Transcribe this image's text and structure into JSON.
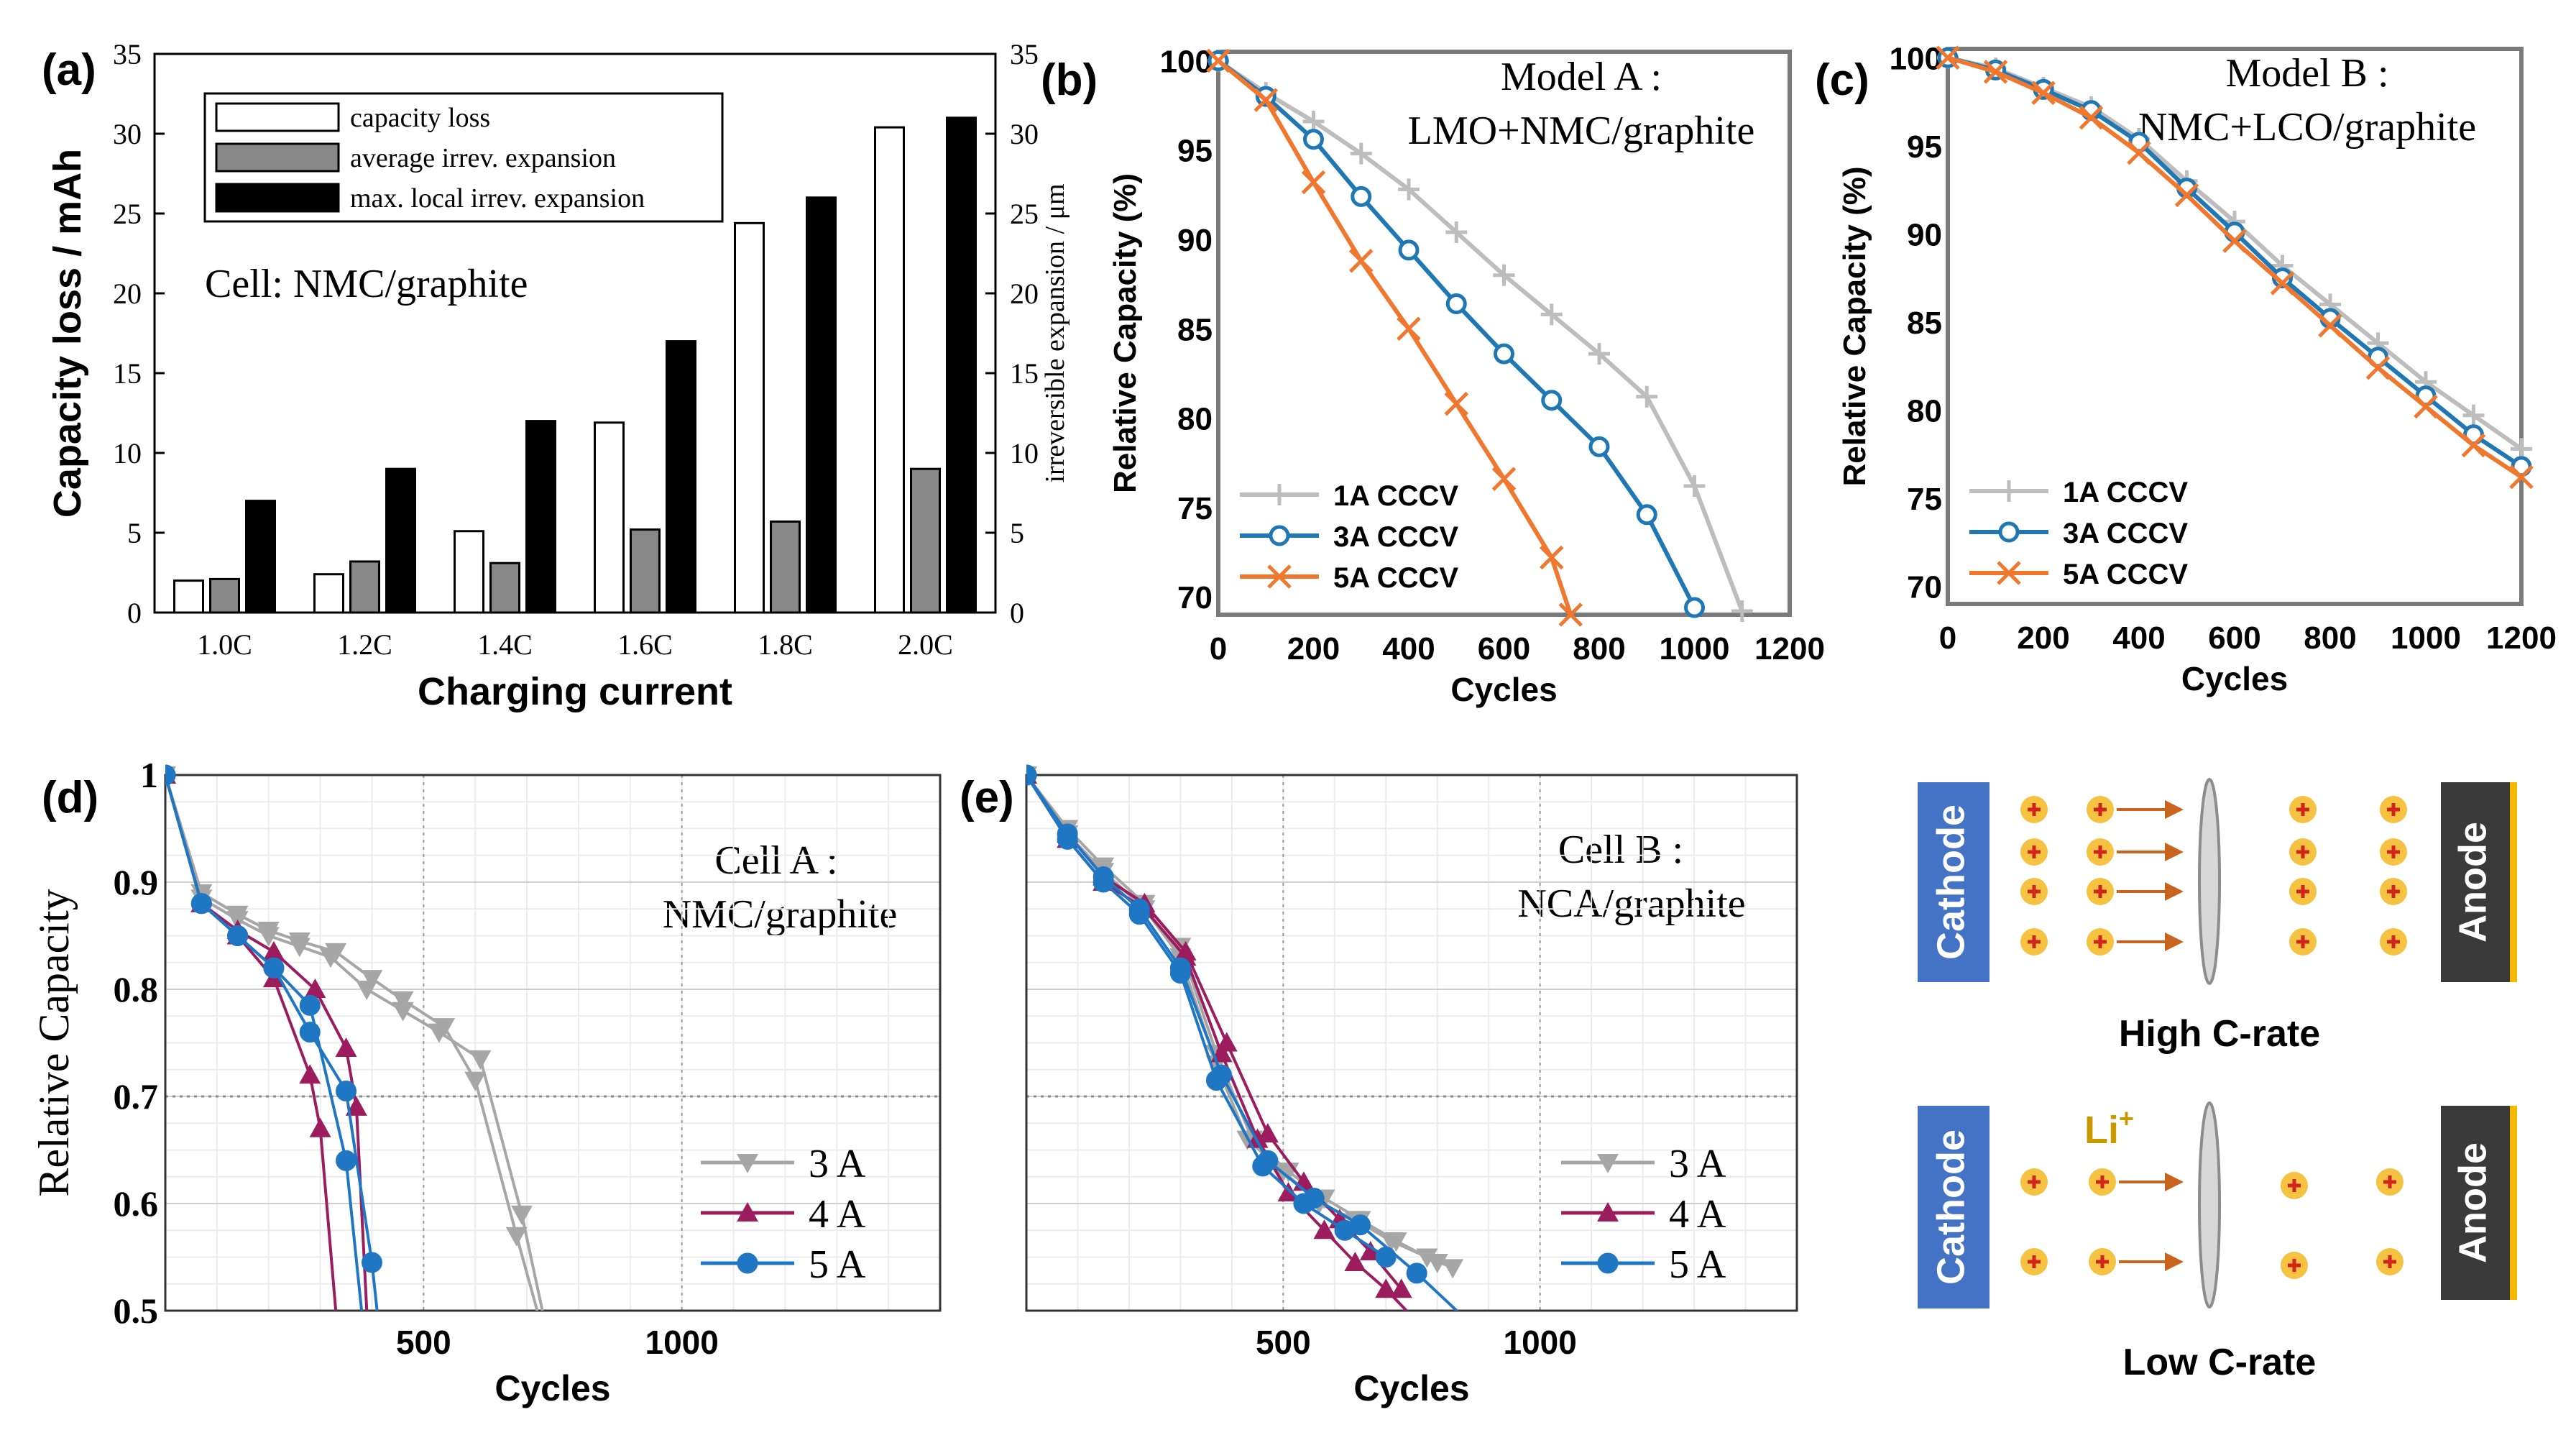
{
  "panels": {
    "a": {
      "label": "(a)",
      "cell_text": "Cell: NMC/graphite"
    },
    "b": {
      "label": "(b)",
      "model_line1": "Model A :",
      "model_line2": "LMO+NMC/graphite"
    },
    "c": {
      "label": "(c)",
      "model_line1": "Model B :",
      "model_line2": "NMC+LCO/graphite"
    },
    "d": {
      "label": "(d)",
      "cell_line1": "Cell A :",
      "cell_line2": "NMC/graphite"
    },
    "e": {
      "label": "(e)",
      "cell_line1": "Cell B :",
      "cell_line2": "NCA/graphite"
    }
  },
  "chart_data": [
    {
      "id": "a",
      "type": "bar",
      "xlabel": "Charging current",
      "ylabel": "Capacity loss / mAh",
      "y2label": "irreversible expansion / μm",
      "ylim": [
        0,
        35
      ],
      "yticks": [
        0,
        5,
        10,
        15,
        20,
        25,
        30,
        35
      ],
      "categories": [
        "1.0C",
        "1.2C",
        "1.4C",
        "1.6C",
        "1.8C",
        "2.0C"
      ],
      "series": [
        {
          "name": "capacity loss",
          "color": "#ffffff",
          "values": [
            2.0,
            2.4,
            5.1,
            11.9,
            24.4,
            30.4
          ]
        },
        {
          "name": "average irrev. expansion",
          "color": "#888888",
          "values": [
            2.1,
            3.2,
            3.1,
            5.2,
            5.7,
            9.0
          ]
        },
        {
          "name": "max. local irrev. expansion",
          "color": "#000000",
          "values": [
            7.0,
            9.0,
            12.0,
            17.0,
            26.0,
            31.0
          ]
        }
      ],
      "legend": "top-left",
      "grid": false
    },
    {
      "id": "b",
      "type": "line",
      "xlabel": "Cycles",
      "ylabel": "Relative Capacity (%)",
      "xlim": [
        0,
        1200
      ],
      "ylim": [
        69,
        100.5
      ],
      "xticks": [
        0,
        200,
        400,
        600,
        800,
        1000,
        1200
      ],
      "yticks": [
        70,
        75,
        80,
        85,
        90,
        95,
        100
      ],
      "series": [
        {
          "name": "1A CCCV",
          "color": "#bdbdbd",
          "marker": "plus",
          "x": [
            0,
            100,
            200,
            300,
            400,
            500,
            600,
            700,
            800,
            900,
            1000,
            1100
          ],
          "y": [
            100,
            98.2,
            96.6,
            94.8,
            92.8,
            90.4,
            88.0,
            85.8,
            83.6,
            81.2,
            76.2,
            69.2
          ]
        },
        {
          "name": "3A CCCV",
          "color": "#1f77b4",
          "marker": "circle",
          "x": [
            0,
            100,
            200,
            300,
            400,
            500,
            600,
            700,
            800,
            900,
            1000
          ],
          "y": [
            100,
            98.0,
            95.6,
            92.4,
            89.4,
            86.4,
            83.6,
            81.0,
            78.4,
            74.6,
            69.4
          ]
        },
        {
          "name": "5A CCCV",
          "color": "#f0772e",
          "marker": "x",
          "x": [
            0,
            100,
            200,
            300,
            400,
            500,
            600,
            700,
            740
          ],
          "y": [
            100,
            97.8,
            93.2,
            88.8,
            85.0,
            80.8,
            76.6,
            72.2,
            69.0
          ]
        }
      ],
      "legend": "bottom-left",
      "grid": false
    },
    {
      "id": "c",
      "type": "line",
      "xlabel": "Cycles",
      "ylabel": "Relative Capacity (%)",
      "xlim": [
        0,
        1200
      ],
      "ylim": [
        69,
        100.5
      ],
      "xticks": [
        0,
        200,
        400,
        600,
        800,
        1000,
        1200
      ],
      "yticks": [
        70,
        75,
        80,
        85,
        90,
        95,
        100
      ],
      "series": [
        {
          "name": "1A CCCV",
          "color": "#bdbdbd",
          "marker": "plus",
          "x": [
            0,
            100,
            200,
            300,
            400,
            500,
            600,
            700,
            800,
            900,
            1000,
            1100,
            1200
          ],
          "y": [
            100,
            99.4,
            98.3,
            97.2,
            95.4,
            93.0,
            90.7,
            88.2,
            86.0,
            83.8,
            81.6,
            79.7,
            77.8
          ]
        },
        {
          "name": "3A CCCV",
          "color": "#1f77b4",
          "marker": "circle",
          "x": [
            0,
            100,
            200,
            300,
            400,
            500,
            600,
            700,
            800,
            900,
            1000,
            1100,
            1200
          ],
          "y": [
            100,
            99.3,
            98.2,
            97.0,
            95.2,
            92.6,
            90.1,
            87.5,
            85.2,
            83.0,
            80.8,
            78.6,
            76.8
          ]
        },
        {
          "name": "5A CCCV",
          "color": "#f0772e",
          "marker": "x",
          "x": [
            0,
            100,
            200,
            300,
            400,
            500,
            600,
            700,
            800,
            900,
            1000,
            1100,
            1200
          ],
          "y": [
            100,
            99.2,
            98.0,
            96.6,
            94.6,
            92.2,
            89.6,
            87.2,
            84.8,
            82.4,
            80.2,
            78.0,
            76.2
          ]
        }
      ],
      "legend": "bottom-left",
      "grid": false
    },
    {
      "id": "d",
      "type": "line",
      "xlabel": "Cycles",
      "ylabel": "Relative Capacity",
      "xlim": [
        0,
        1500
      ],
      "ylim": [
        0.5,
        1.0
      ],
      "xticks": [
        500,
        1000
      ],
      "yticks": [
        0.5,
        0.6,
        0.7,
        0.8,
        0.9,
        1
      ],
      "reference_line": 0.7,
      "series": [
        {
          "name": "3 A",
          "color": "#a6a6a6",
          "marker": "triangle-down",
          "x": [
            0,
            70,
            140,
            200,
            260,
            320,
            390,
            460,
            530,
            610,
            690,
            730
          ],
          "y": [
            1.0,
            0.885,
            0.865,
            0.85,
            0.84,
            0.83,
            0.8,
            0.78,
            0.76,
            0.735,
            0.59,
            0.5
          ]
        },
        {
          "name": "3 A",
          "color": "#a6a6a6",
          "marker": "triangle-down",
          "x": [
            0,
            70,
            140,
            200,
            260,
            330,
            400,
            460,
            540,
            600,
            680,
            720
          ],
          "y": [
            1.0,
            0.89,
            0.87,
            0.855,
            0.845,
            0.835,
            0.81,
            0.79,
            0.765,
            0.715,
            0.57,
            0.5
          ]
        },
        {
          "name": "4 A",
          "color": "#9b1d5e",
          "marker": "triangle-up",
          "x": [
            0,
            70,
            140,
            210,
            280,
            300,
            330
          ],
          "y": [
            1.0,
            0.88,
            0.85,
            0.81,
            0.72,
            0.67,
            0.5
          ]
        },
        {
          "name": "4 A",
          "color": "#9b1d5e",
          "marker": "triangle-up",
          "x": [
            0,
            70,
            140,
            210,
            290,
            350,
            370,
            390
          ],
          "y": [
            1.0,
            0.88,
            0.855,
            0.835,
            0.8,
            0.745,
            0.69,
            0.5
          ]
        },
        {
          "name": "5 A",
          "color": "#1f77c4",
          "marker": "circle",
          "x": [
            0,
            70,
            140,
            210,
            280,
            350,
            400,
            410
          ],
          "y": [
            1.0,
            0.88,
            0.85,
            0.82,
            0.76,
            0.705,
            0.545,
            0.5
          ]
        },
        {
          "name": "5 A",
          "color": "#1f77c4",
          "marker": "circle",
          "x": [
            0,
            70,
            140,
            210,
            280,
            350,
            380
          ],
          "y": [
            1.0,
            0.88,
            0.85,
            0.82,
            0.785,
            0.64,
            0.5
          ]
        }
      ],
      "legend": "bottom-right",
      "grid": true
    },
    {
      "id": "e",
      "type": "line",
      "xlabel": "Cycles",
      "ylabel": "",
      "xlim": [
        0,
        1500
      ],
      "ylim": [
        0.5,
        1.0
      ],
      "xticks": [
        500,
        1000
      ],
      "yticks": [],
      "reference_line": 0.7,
      "series": [
        {
          "name": "3 A",
          "color": "#a6a6a6",
          "marker": "triangle-down",
          "x": [
            0,
            80,
            150,
            230,
            300,
            370,
            430,
            500,
            570,
            640,
            710,
            780,
            830
          ],
          "y": [
            1.0,
            0.945,
            0.91,
            0.875,
            0.83,
            0.73,
            0.66,
            0.63,
            0.6,
            0.585,
            0.565,
            0.55,
            0.54
          ]
        },
        {
          "name": "3 A",
          "color": "#a6a6a6",
          "marker": "triangle-down",
          "x": [
            0,
            80,
            150,
            230,
            300,
            370,
            440,
            510,
            580,
            650,
            720,
            800
          ],
          "y": [
            1.0,
            0.95,
            0.915,
            0.88,
            0.84,
            0.74,
            0.66,
            0.63,
            0.605,
            0.585,
            0.565,
            0.545
          ]
        },
        {
          "name": "4 A",
          "color": "#9b1d5e",
          "marker": "triangle-up",
          "x": [
            0,
            80,
            150,
            230,
            310,
            380,
            450,
            510,
            580,
            640,
            700,
            760
          ],
          "y": [
            1.0,
            0.94,
            0.9,
            0.875,
            0.83,
            0.74,
            0.66,
            0.61,
            0.575,
            0.545,
            0.52,
            0.49
          ]
        },
        {
          "name": "4 A",
          "color": "#9b1d5e",
          "marker": "triangle-up",
          "x": [
            0,
            80,
            150,
            230,
            310,
            390,
            470,
            540,
            610,
            670,
            730
          ],
          "y": [
            1.0,
            0.945,
            0.905,
            0.88,
            0.835,
            0.75,
            0.665,
            0.62,
            0.585,
            0.555,
            0.52
          ]
        },
        {
          "name": "5 A",
          "color": "#1f77c4",
          "marker": "circle",
          "x": [
            0,
            80,
            150,
            220,
            300,
            380,
            470,
            560,
            650,
            760,
            860
          ],
          "y": [
            1.0,
            0.945,
            0.905,
            0.875,
            0.82,
            0.72,
            0.64,
            0.605,
            0.58,
            0.535,
            0.49
          ]
        },
        {
          "name": "5 A",
          "color": "#1f77c4",
          "marker": "circle",
          "x": [
            0,
            80,
            150,
            220,
            300,
            370,
            460,
            540,
            620,
            700
          ],
          "y": [
            1.0,
            0.94,
            0.9,
            0.87,
            0.815,
            0.715,
            0.635,
            0.6,
            0.575,
            0.55
          ]
        }
      ],
      "legend": "bottom-right",
      "grid": true
    }
  ],
  "diagram": {
    "high": {
      "cathode": "Cathode",
      "anode": "Anode",
      "caption": "High C-rate"
    },
    "low": {
      "cathode": "Cathode",
      "anode": "Anode",
      "caption": "Low C-rate",
      "ion_text": "Li",
      "ion_superscript": "+"
    },
    "cathode_color": "#4472c4",
    "anode_color": "#3a3a3a",
    "anode_edge_color": "#f5b800",
    "ion_color": "#f5c242",
    "arrow_color": "#c8641e"
  }
}
